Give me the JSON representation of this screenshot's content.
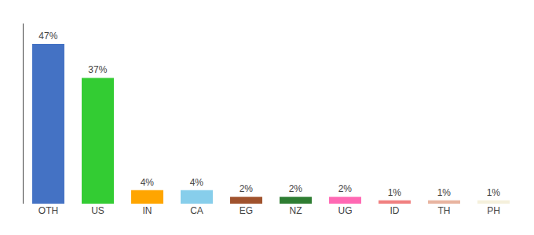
{
  "chart_data": {
    "type": "bar",
    "categories": [
      "OTH",
      "US",
      "IN",
      "CA",
      "EG",
      "NZ",
      "UG",
      "ID",
      "TH",
      "PH"
    ],
    "values": [
      47,
      37,
      4,
      4,
      2,
      2,
      2,
      1,
      1,
      1
    ],
    "value_labels": [
      "47%",
      "37%",
      "4%",
      "4%",
      "2%",
      "2%",
      "2%",
      "1%",
      "1%",
      "1%"
    ],
    "colors": [
      "#4472C4",
      "#33CC33",
      "#FFA500",
      "#87CEEB",
      "#A0522D",
      "#2E7D32",
      "#FF69B4",
      "#F08080",
      "#E8B4A0",
      "#F5F0DC"
    ],
    "ylim": [
      0,
      53
    ],
    "yticks": [],
    "grid": false,
    "data_labels": true,
    "tick_labels": "x"
  }
}
